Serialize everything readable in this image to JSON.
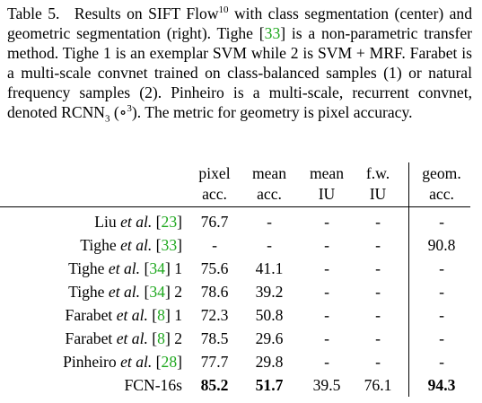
{
  "caption": {
    "segments": [
      "Table 5.",
      "Results on SIFT Flow",
      "10",
      " with class segmentation (center) and geometric segmentation (right). Tighe [",
      "33",
      "] is a non-parametric transfer method. Tighe 1 is an exemplar SVM while 2 is SVM + MRF. Farabet is a multi-scale convnet trained on class-balanced samples (1) or natural frequency samples (2). Pinheiro is a multi-scale, recurrent convnet, denoted ",
      "RCNN",
      "3",
      " (∘",
      "3",
      "). The metric for geometry is pixel accuracy."
    ]
  },
  "table": {
    "header": [
      [
        "pixel",
        "acc."
      ],
      [
        "mean",
        "acc."
      ],
      [
        "mean",
        "IU"
      ],
      [
        "f.w.",
        "IU"
      ],
      [
        "geom.",
        "acc."
      ]
    ],
    "rows": [
      {
        "method": [
          "Liu ",
          "et al.",
          " [",
          "23",
          "]"
        ],
        "values": [
          76.7,
          "-",
          "-",
          "-",
          "-"
        ]
      },
      {
        "method": [
          "Tighe ",
          "et al.",
          " [",
          "33",
          "]"
        ],
        "values": [
          "-",
          "-",
          "-",
          "-",
          90.8
        ]
      },
      {
        "method": [
          "Tighe ",
          "et al.",
          " [",
          "34",
          "] 1"
        ],
        "values": [
          75.6,
          41.1,
          "-",
          "-",
          "-"
        ]
      },
      {
        "method": [
          "Tighe ",
          "et al.",
          " [",
          "34",
          "] 2"
        ],
        "values": [
          78.6,
          39.2,
          "-",
          "-",
          "-"
        ]
      },
      {
        "method": [
          "Farabet ",
          "et al.",
          " [",
          "8",
          "] 1"
        ],
        "values": [
          72.3,
          50.8,
          "-",
          "-",
          "-"
        ]
      },
      {
        "method": [
          "Farabet ",
          "et al.",
          " [",
          "8",
          "] 2"
        ],
        "values": [
          78.5,
          29.6,
          "-",
          "-",
          "-"
        ]
      },
      {
        "method": [
          "Pinheiro ",
          "et al.",
          " [",
          "28",
          "]"
        ],
        "values": [
          77.7,
          29.8,
          "-",
          "-",
          "-"
        ]
      },
      {
        "method": [
          "FCN-16s"
        ],
        "values": [
          85.2,
          51.7,
          39.5,
          76.1,
          94.3
        ],
        "bold": [
          0,
          1,
          4
        ]
      }
    ]
  }
}
